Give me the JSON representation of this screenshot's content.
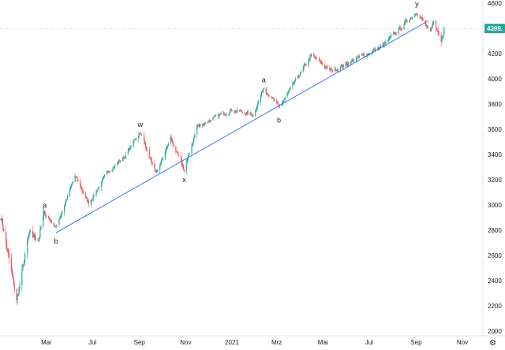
{
  "chart_data": {
    "type": "candlestick",
    "title": "",
    "xlabel": "",
    "ylabel": "",
    "ylim": [
      2000,
      4600
    ],
    "grid": false,
    "legend": "none",
    "colors": {
      "up": "#26a69a",
      "down": "#ef5350",
      "trendline": "#2962ff",
      "last_price": "#26a69a"
    },
    "y_ticks": [
      "4600",
      "4400",
      "4200",
      "4000",
      "3800",
      "3600",
      "3400",
      "3200",
      "3000",
      "2800",
      "2600",
      "2400",
      "2200",
      "2000"
    ],
    "x_ticks": [
      {
        "label": "Mai",
        "x": "2020-05-01"
      },
      {
        "label": "Jul",
        "x": "2020-07-01"
      },
      {
        "label": "Sep",
        "x": "2020-09-01"
      },
      {
        "label": "Nov",
        "x": "2020-11-01"
      },
      {
        "label": "2021",
        "x": "2021-01-01"
      },
      {
        "label": "Mrz",
        "x": "2021-03-01"
      },
      {
        "label": "Mai",
        "x": "2021-05-01"
      },
      {
        "label": "Jul",
        "x": "2021-07-01"
      },
      {
        "label": "Sep",
        "x": "2021-09-01"
      },
      {
        "label": "Nov",
        "x": "2021-11-01"
      }
    ],
    "last_price": {
      "label": "4399.",
      "value": 4399
    },
    "path": [
      [
        "2020-03-01",
        2950
      ],
      [
        "2020-03-23",
        2237
      ],
      [
        "2020-04-08",
        2750
      ],
      [
        "2020-04-21",
        2740
      ],
      [
        "2020-04-29",
        2940
      ],
      [
        "2020-05-14",
        2820
      ],
      [
        "2020-06-08",
        3230
      ],
      [
        "2020-06-26",
        3010
      ],
      [
        "2020-07-22",
        3270
      ],
      [
        "2020-08-12",
        3380
      ],
      [
        "2020-09-02",
        3580
      ],
      [
        "2020-09-23",
        3240
      ],
      [
        "2020-10-12",
        3530
      ],
      [
        "2020-10-30",
        3270
      ],
      [
        "2020-11-16",
        3620
      ],
      [
        "2020-12-31",
        3756
      ],
      [
        "2021-01-29",
        3714
      ],
      [
        "2021-02-12",
        3934
      ],
      [
        "2021-03-04",
        3770
      ],
      [
        "2021-04-16",
        4185
      ],
      [
        "2021-05-12",
        4060
      ],
      [
        "2021-06-18",
        4170
      ],
      [
        "2021-07-19",
        4260
      ],
      [
        "2021-09-02",
        4537
      ],
      [
        "2021-09-20",
        4357
      ],
      [
        "2021-09-24",
        4455
      ],
      [
        "2021-10-04",
        4300
      ],
      [
        "2021-10-08",
        4399
      ]
    ],
    "trendline": {
      "from": {
        "x": "2020-05-14",
        "y": 2780
      },
      "to": {
        "x": "2021-09-17",
        "y": 4460
      }
    },
    "annotations": [
      {
        "text": "a",
        "x": "2020-04-29",
        "y": 2940,
        "pos": "above"
      },
      {
        "text": "b",
        "x": "2020-05-14",
        "y": 2780,
        "pos": "below"
      },
      {
        "text": "w",
        "x": "2020-09-02",
        "y": 3580,
        "pos": "above"
      },
      {
        "text": "x",
        "x": "2020-10-30",
        "y": 3270,
        "pos": "below"
      },
      {
        "text": "a",
        "x": "2021-02-12",
        "y": 3934,
        "pos": "above"
      },
      {
        "text": "b",
        "x": "2021-03-04",
        "y": 3740,
        "pos": "below"
      },
      {
        "text": "y",
        "x": "2021-09-02",
        "y": 4537,
        "pos": "above"
      }
    ],
    "settings_icon": "gear-icon"
  }
}
